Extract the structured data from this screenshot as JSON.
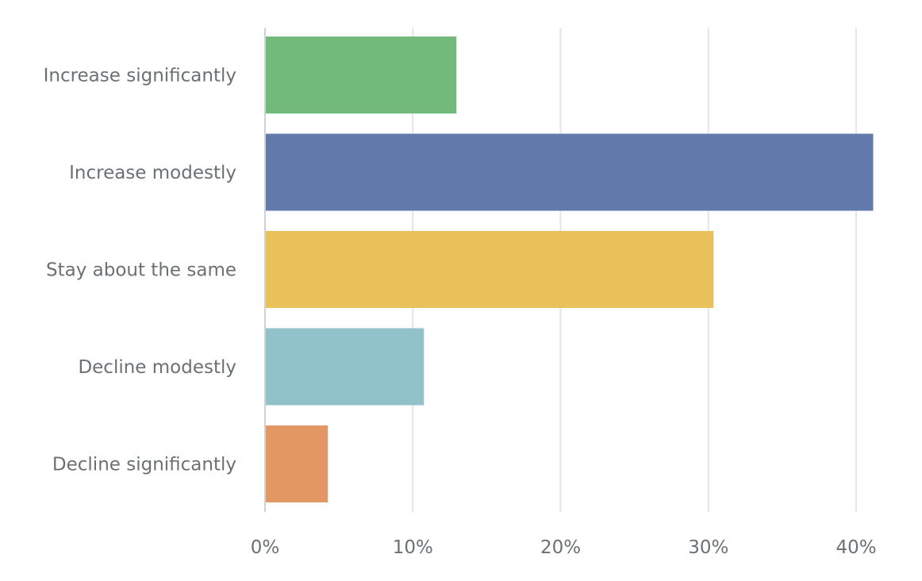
{
  "chart_data": {
    "type": "bar",
    "orientation": "horizontal",
    "title": "",
    "xlabel": "",
    "ylabel": "",
    "categories": [
      "Increase significantly",
      "Increase modestly",
      "Stay about the same",
      "Decline modestly",
      "Decline significantly"
    ],
    "values": [
      12.9,
      41.1,
      30.3,
      10.7,
      4.2
    ],
    "colors": [
      "#72b97c",
      "#5f7aab",
      "#e8c15a",
      "#92c2c9",
      "#e39863"
    ],
    "xlim": [
      0,
      42
    ],
    "ticks": [
      0,
      10,
      20,
      30,
      40
    ],
    "tick_labels": [
      "0%",
      "10%",
      "20%",
      "30%",
      "40%"
    ],
    "grid": true,
    "legend": "none"
  }
}
